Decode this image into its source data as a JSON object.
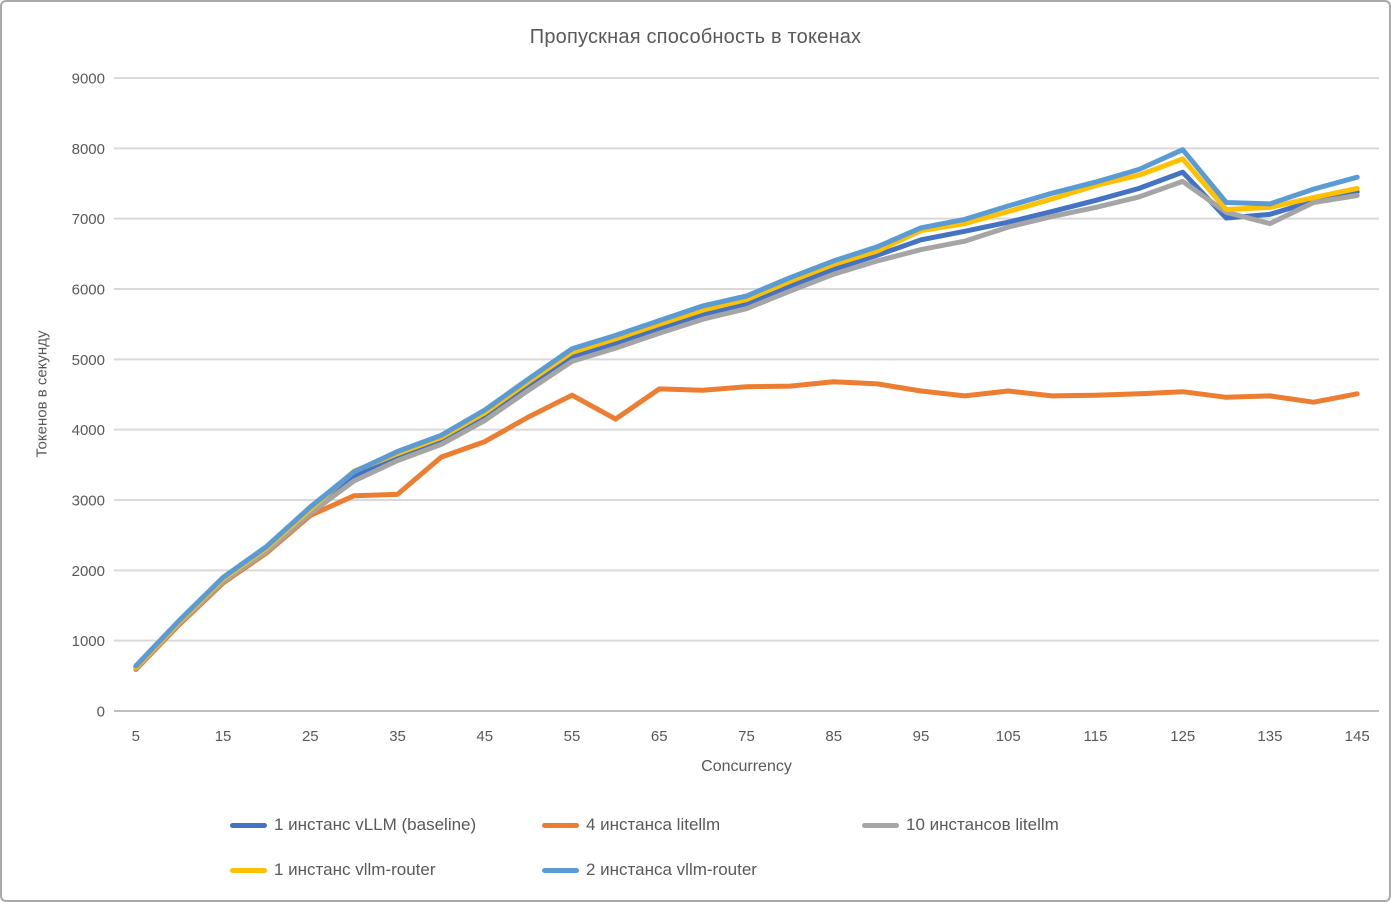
{
  "chart": {
    "title": "Пропускная способность в токенах",
    "x_axis_title": "Concurrency",
    "y_axis_title": "Токенов в секунду"
  },
  "colors": {
    "gridline": "#d9d9d9",
    "axis_line": "#bfbfbf",
    "text": "#595959",
    "border": "#a9a9a9"
  },
  "chart_data": {
    "type": "line",
    "title": "Пропускная способность в токенах",
    "xlabel": "Concurrency",
    "ylabel": "Токенов в секунду",
    "x": [
      5,
      10,
      15,
      20,
      25,
      30,
      35,
      40,
      45,
      50,
      55,
      60,
      65,
      70,
      75,
      80,
      85,
      90,
      95,
      100,
      105,
      110,
      115,
      120,
      125,
      130,
      135,
      140,
      145
    ],
    "x_tick_labels": [
      5,
      15,
      25,
      35,
      45,
      55,
      65,
      75,
      85,
      95,
      105,
      115,
      125,
      135,
      145
    ],
    "ylim": [
      0,
      9000
    ],
    "y_ticks": [
      0,
      1000,
      2000,
      3000,
      4000,
      5000,
      6000,
      7000,
      8000,
      9000
    ],
    "grid": true,
    "legend_position": "bottom",
    "series": [
      {
        "name": "1 инстанс vLLM (baseline)",
        "color": "#4472C4",
        "values": [
          630,
          1270,
          1870,
          2300,
          2850,
          3330,
          3620,
          3850,
          4200,
          4630,
          5040,
          5230,
          5440,
          5640,
          5790,
          6040,
          6280,
          6480,
          6700,
          6820,
          6950,
          7100,
          7260,
          7430,
          7660,
          7010,
          7060,
          7250,
          7380
        ]
      },
      {
        "name": "4 инстанса litellm",
        "color": "#ED7D31",
        "values": [
          590,
          1230,
          1820,
          2250,
          2780,
          3060,
          3080,
          3610,
          3830,
          4180,
          4490,
          4150,
          4580,
          4560,
          4610,
          4620,
          4680,
          4650,
          4550,
          4480,
          4550,
          4480,
          4490,
          4510,
          4540,
          4460,
          4480,
          4390,
          4510
        ]
      },
      {
        "name": "10 инстансов litellm",
        "color": "#A5A5A5",
        "values": [
          610,
          1250,
          1840,
          2270,
          2810,
          3270,
          3560,
          3790,
          4130,
          4560,
          4970,
          5160,
          5370,
          5570,
          5720,
          5970,
          6210,
          6400,
          6560,
          6680,
          6880,
          7030,
          7160,
          7310,
          7530,
          7090,
          6930,
          7230,
          7330
        ]
      },
      {
        "name": "1 инстанс vllm-router",
        "color": "#FFC000",
        "values": [
          620,
          1270,
          1880,
          2320,
          2870,
          3410,
          3660,
          3890,
          4240,
          4680,
          5100,
          5290,
          5500,
          5700,
          5850,
          6110,
          6350,
          6540,
          6830,
          6930,
          7100,
          7280,
          7470,
          7620,
          7850,
          7130,
          7160,
          7300,
          7430
        ]
      },
      {
        "name": "2 инстанса vllm-router",
        "color": "#5B9BD5",
        "values": [
          640,
          1290,
          1900,
          2340,
          2900,
          3400,
          3690,
          3920,
          4280,
          4720,
          5150,
          5340,
          5550,
          5760,
          5900,
          6160,
          6400,
          6600,
          6870,
          6990,
          7180,
          7360,
          7520,
          7700,
          7980,
          7230,
          7210,
          7420,
          7590
        ]
      }
    ]
  }
}
